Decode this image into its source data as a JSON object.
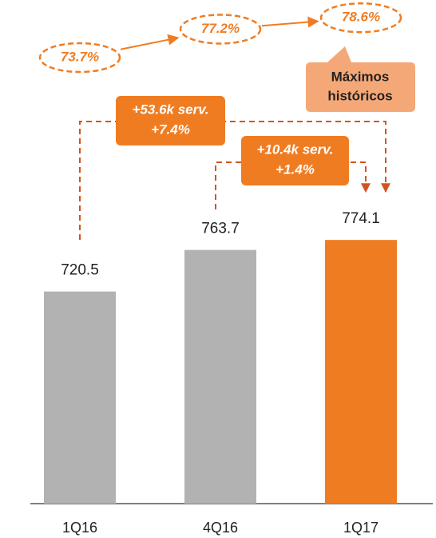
{
  "chart_data": {
    "type": "bar",
    "categories": [
      "1Q16",
      "4Q16",
      "1Q17"
    ],
    "ylim": [
      500,
      800
    ],
    "y2lim": [
      68,
      80
    ],
    "series": [
      {
        "type": "bar",
        "values": [
          720.5,
          763.7,
          774.1
        ],
        "colors": [
          "#b2b2b2",
          "#b2b2b2",
          "#f07c22"
        ]
      },
      {
        "type": "line",
        "axis": "y2",
        "values": [
          73.7,
          77.2,
          78.6
        ],
        "value_labels": [
          "73.7%",
          "77.2%",
          "78.6%"
        ],
        "color": "#f07c22"
      }
    ],
    "annotations": [
      {
        "text": [
          "+53.6k serv.",
          "+7.4%"
        ]
      },
      {
        "text": [
          "+10.4k serv.",
          "+1.4%"
        ]
      }
    ],
    "callout": [
      "Máximos",
      "históricos"
    ]
  }
}
